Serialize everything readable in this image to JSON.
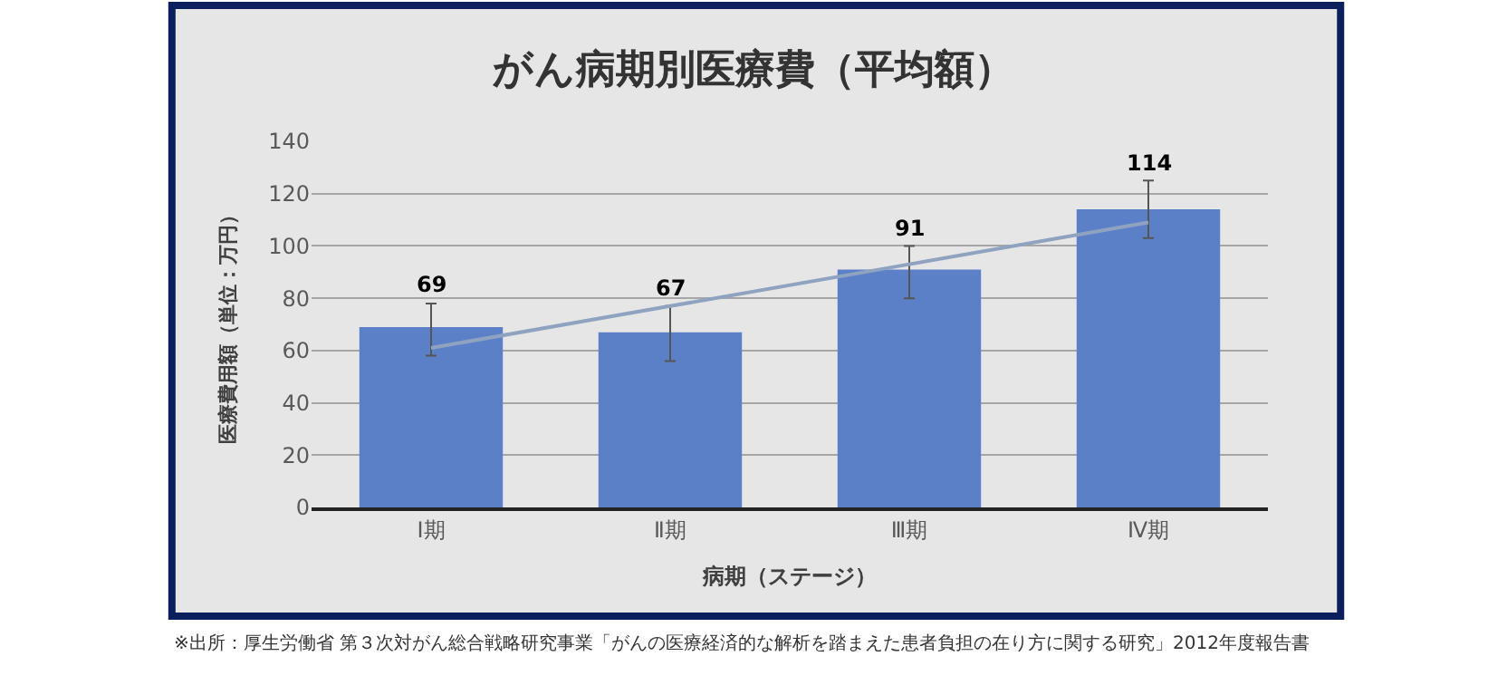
{
  "chart_data": {
    "type": "bar",
    "title": "がん病期別医療費（平均額）",
    "xlabel": "病期（ステージ）",
    "ylabel": "医療費用額（単位：万円）",
    "categories": [
      "Ⅰ期",
      "Ⅱ期",
      "Ⅲ期",
      "Ⅳ期"
    ],
    "series": [
      {
        "color": "#5b80c8",
        "values": [
          69,
          67,
          91,
          114
        ],
        "value_labels": [
          "69",
          "67",
          "91",
          "114"
        ],
        "errors": [
          [
            58,
            78
          ],
          [
            56,
            77
          ],
          [
            80,
            100
          ],
          [
            103,
            125
          ]
        ]
      },
      {
        "type": "line",
        "color": "#8fa3c0",
        "values": [
          61,
          77,
          93,
          109
        ],
        "marker": "none"
      }
    ],
    "ylim": [
      0,
      140
    ],
    "yticks": [
      0,
      20,
      40,
      60,
      80,
      100,
      120,
      140
    ],
    "grid": "y",
    "annotations": [
      "※出所：厚生労働省 第３次対がん総合戦略研究事業「がんの医療経済的な解析を踏まえた患者負担の在り方に関する研究」2012年度報告書"
    ]
  }
}
